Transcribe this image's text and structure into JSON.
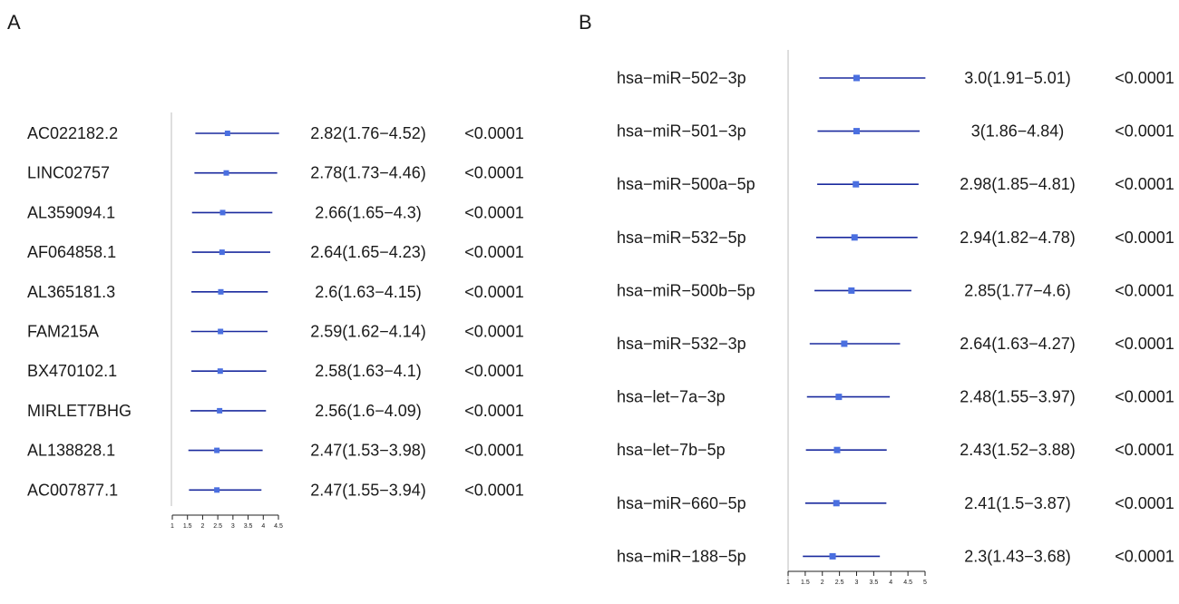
{
  "chart_data": [
    {
      "panel": "A",
      "type": "forest",
      "xticks": [
        "1",
        "1.5",
        "2",
        "2.5",
        "3",
        "3.5",
        "4",
        "4.5"
      ],
      "xlim": [
        1,
        4.5
      ],
      "rows": [
        {
          "label": "AC022182.2",
          "hr": 2.82,
          "lo": 1.76,
          "hi": 4.52,
          "ci_text": "2.82(1.76−4.52)",
          "p_text": "<0.0001"
        },
        {
          "label": "LINC02757",
          "hr": 2.78,
          "lo": 1.73,
          "hi": 4.46,
          "ci_text": "2.78(1.73−4.46)",
          "p_text": "<0.0001"
        },
        {
          "label": "AL359094.1",
          "hr": 2.66,
          "lo": 1.65,
          "hi": 4.3,
          "ci_text": "2.66(1.65−4.3)",
          "p_text": "<0.0001"
        },
        {
          "label": "AF064858.1",
          "hr": 2.64,
          "lo": 1.65,
          "hi": 4.23,
          "ci_text": "2.64(1.65−4.23)",
          "p_text": "<0.0001"
        },
        {
          "label": "AL365181.3",
          "hr": 2.6,
          "lo": 1.63,
          "hi": 4.15,
          "ci_text": "2.6(1.63−4.15)",
          "p_text": "<0.0001"
        },
        {
          "label": "FAM215A",
          "hr": 2.59,
          "lo": 1.62,
          "hi": 4.14,
          "ci_text": "2.59(1.62−4.14)",
          "p_text": "<0.0001"
        },
        {
          "label": "BX470102.1",
          "hr": 2.58,
          "lo": 1.63,
          "hi": 4.1,
          "ci_text": "2.58(1.63−4.1)",
          "p_text": "<0.0001"
        },
        {
          "label": "MIRLET7BHG",
          "hr": 2.56,
          "lo": 1.6,
          "hi": 4.09,
          "ci_text": "2.56(1.6−4.09)",
          "p_text": "<0.0001"
        },
        {
          "label": "AL138828.1",
          "hr": 2.47,
          "lo": 1.53,
          "hi": 3.98,
          "ci_text": "2.47(1.53−3.98)",
          "p_text": "<0.0001"
        },
        {
          "label": "AC007877.1",
          "hr": 2.47,
          "lo": 1.55,
          "hi": 3.94,
          "ci_text": "2.47(1.55−3.94)",
          "p_text": "<0.0001"
        }
      ]
    },
    {
      "panel": "B",
      "type": "forest",
      "xticks": [
        "1",
        "1.5",
        "2",
        "2.5",
        "3",
        "3.5",
        "4",
        "4.5",
        "5"
      ],
      "xlim": [
        1,
        5
      ],
      "rows": [
        {
          "label": "hsa−miR−502−3p",
          "hr": 3.0,
          "lo": 1.91,
          "hi": 5.01,
          "ci_text": "3.0(1.91−5.01)",
          "p_text": "<0.0001"
        },
        {
          "label": "hsa−miR−501−3p",
          "hr": 3.0,
          "lo": 1.86,
          "hi": 4.84,
          "ci_text": "3(1.86−4.84)",
          "p_text": "<0.0001"
        },
        {
          "label": "hsa−miR−500a−5p",
          "hr": 2.98,
          "lo": 1.85,
          "hi": 4.81,
          "ci_text": "2.98(1.85−4.81)",
          "p_text": "<0.0001"
        },
        {
          "label": "hsa−miR−532−5p",
          "hr": 2.94,
          "lo": 1.82,
          "hi": 4.78,
          "ci_text": "2.94(1.82−4.78)",
          "p_text": "<0.0001"
        },
        {
          "label": "hsa−miR−500b−5p",
          "hr": 2.85,
          "lo": 1.77,
          "hi": 4.6,
          "ci_text": "2.85(1.77−4.6)",
          "p_text": "<0.0001"
        },
        {
          "label": "hsa−miR−532−3p",
          "hr": 2.64,
          "lo": 1.63,
          "hi": 4.27,
          "ci_text": "2.64(1.63−4.27)",
          "p_text": "<0.0001"
        },
        {
          "label": "hsa−let−7a−3p",
          "hr": 2.48,
          "lo": 1.55,
          "hi": 3.97,
          "ci_text": "2.48(1.55−3.97)",
          "p_text": "<0.0001"
        },
        {
          "label": "hsa−let−7b−5p",
          "hr": 2.43,
          "lo": 1.52,
          "hi": 3.88,
          "ci_text": "2.43(1.52−3.88)",
          "p_text": "<0.0001"
        },
        {
          "label": "hsa−miR−660−5p",
          "hr": 2.41,
          "lo": 1.5,
          "hi": 3.87,
          "ci_text": "2.41(1.5−3.87)",
          "p_text": "<0.0001"
        },
        {
          "label": "hsa−miR−188−5p",
          "hr": 2.3,
          "lo": 1.43,
          "hi": 3.68,
          "ci_text": "2.3(1.43−3.68)",
          "p_text": "<0.0001"
        }
      ]
    }
  ],
  "colors": {
    "ci_line": "#1a2a9e",
    "marker": "#4a6fe0",
    "divider": "#c8c8c8",
    "text": "#1a1a1a",
    "axis": "#222222"
  }
}
